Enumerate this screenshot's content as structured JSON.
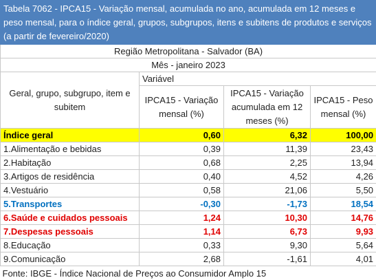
{
  "header": {
    "title": "Tabela 7062 - IPCA15 - Variação mensal, acumulada no ano, acumulada em 12 meses e peso mensal, para o índice geral, grupos, subgrupos, itens e subitens de produtos e serviços (a partir de fevereiro/2020)"
  },
  "table": {
    "region": "Região Metropolitana - Salvador (BA)",
    "month": "Mês - janeiro 2023",
    "variable_header": "Variável",
    "row_header": "Geral, grupo, subgrupo, item e subitem",
    "columns": [
      "IPCA15 - Variação mensal (%)",
      "IPCA15 - Variação acumulada em 12 meses (%)",
      "IPCA15 - Peso mensal (%)"
    ],
    "rows": [
      {
        "cells": [
          "Índice geral",
          "0,60",
          "6,32",
          "100,00"
        ],
        "color": "#000000",
        "background": "#ffff00",
        "bold": true
      },
      {
        "cells": [
          "1.Alimentação e bebidas",
          "0,39",
          "11,39",
          "23,43"
        ]
      },
      {
        "cells": [
          "2.Habitação",
          "0,68",
          "2,25",
          "13,94"
        ]
      },
      {
        "cells": [
          "3.Artigos de residência",
          "0,40",
          "4,52",
          "4,26"
        ]
      },
      {
        "cells": [
          "4.Vestuário",
          "0,58",
          "21,06",
          "5,50"
        ]
      },
      {
        "cells": [
          "5.Transportes",
          "-0,30",
          "-1,73",
          "18,54"
        ],
        "color": "#0070c0",
        "bold": true
      },
      {
        "cells": [
          "6.Saúde e cuidados pessoais",
          "1,24",
          "10,30",
          "14,76"
        ],
        "color": "#e00000",
        "bold": true
      },
      {
        "cells": [
          "7.Despesas pessoais",
          "1,14",
          "6,73",
          "9,93"
        ],
        "color": "#e00000",
        "bold": true
      },
      {
        "cells": [
          "8.Educação",
          "0,33",
          "9,30",
          "5,64"
        ]
      },
      {
        "cells": [
          "9.Comunicação",
          "2,68",
          "-1,61",
          "4,01"
        ]
      }
    ]
  },
  "footer": {
    "source": "Fonte: IBGE - Índice Nacional de Preços ao Consumidor Amplo 15"
  }
}
